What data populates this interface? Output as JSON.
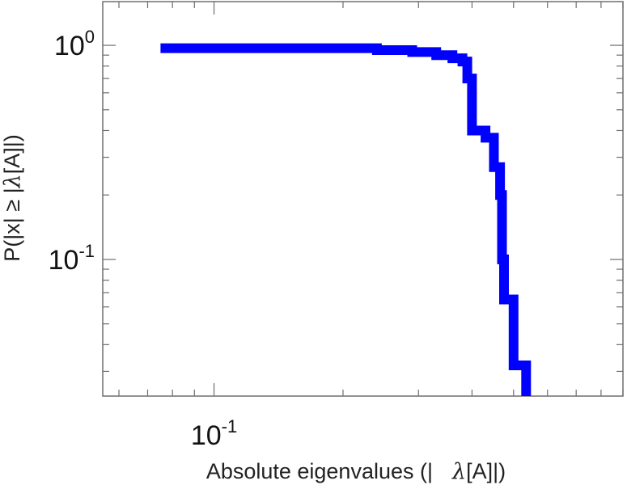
{
  "chart_data": {
    "type": "line",
    "scale": {
      "x": "log",
      "y": "log"
    },
    "xlim": [
      0.055,
      0.9
    ],
    "ylim": [
      0.023,
      1.6
    ],
    "xlabel": {
      "prefix": "Absolute eigenvalues (|",
      "symbol": "λ",
      "suffix": "[A]|)"
    },
    "ylabel": {
      "prefix": "P(|x|  ≥ |",
      "symbol": "λ",
      "suffix": "[A]|)"
    },
    "x_tick_labels": [
      {
        "value": 0.1,
        "base": "10",
        "exp": "-1"
      }
    ],
    "y_tick_labels": [
      {
        "value": 1,
        "base": "10",
        "exp": "0"
      },
      {
        "value": 0.1,
        "base": "10",
        "exp": "-1"
      }
    ],
    "grid": false,
    "color": "#0000ff",
    "series": [
      {
        "steps": [
          [
            0.075,
            0.97
          ],
          [
            0.24,
            0.97
          ],
          [
            0.24,
            0.95
          ],
          [
            0.29,
            0.95
          ],
          [
            0.29,
            0.93
          ],
          [
            0.33,
            0.93
          ],
          [
            0.33,
            0.9
          ],
          [
            0.36,
            0.9
          ],
          [
            0.36,
            0.87
          ],
          [
            0.38,
            0.87
          ],
          [
            0.38,
            0.84
          ],
          [
            0.39,
            0.84
          ],
          [
            0.39,
            0.7
          ],
          [
            0.4,
            0.7
          ],
          [
            0.4,
            0.4
          ],
          [
            0.43,
            0.4
          ],
          [
            0.43,
            0.37
          ],
          [
            0.45,
            0.37
          ],
          [
            0.45,
            0.27
          ],
          [
            0.465,
            0.27
          ],
          [
            0.465,
            0.2
          ],
          [
            0.47,
            0.2
          ],
          [
            0.47,
            0.1
          ],
          [
            0.475,
            0.1
          ],
          [
            0.475,
            0.065
          ],
          [
            0.5,
            0.065
          ],
          [
            0.5,
            0.032
          ],
          [
            0.535,
            0.032
          ],
          [
            0.535,
            0.023
          ]
        ]
      }
    ]
  }
}
